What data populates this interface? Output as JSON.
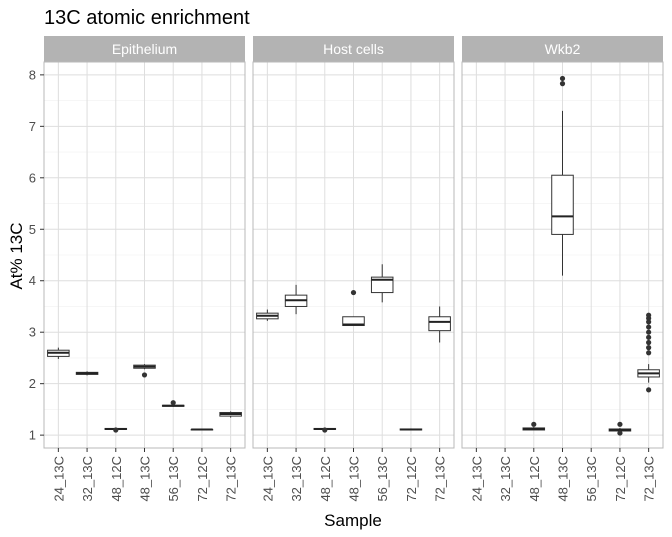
{
  "chart_data": {
    "type": "boxplot",
    "title": "13C atomic enrichment",
    "xlabel": "Sample",
    "ylabel": "At% 13C",
    "ylim": [
      0.75,
      8.25
    ],
    "yticks": [
      1,
      2,
      3,
      4,
      5,
      6,
      7,
      8
    ],
    "grid": true,
    "categories": [
      "24_13C",
      "32_13C",
      "48_12C",
      "48_13C",
      "56_13C",
      "72_12C",
      "72_13C"
    ],
    "panels": [
      {
        "name": "Epithelium",
        "boxes": [
          {
            "category": "24_13C",
            "min": 2.48,
            "q1": 2.53,
            "median": 2.6,
            "q3": 2.65,
            "max": 2.7,
            "outliers": []
          },
          {
            "category": "32_13C",
            "min": 2.16,
            "q1": 2.18,
            "median": 2.2,
            "q3": 2.22,
            "max": 2.24,
            "outliers": []
          },
          {
            "category": "48_12C",
            "min": 1.1,
            "q1": 1.11,
            "median": 1.12,
            "q3": 1.13,
            "max": 1.14,
            "outliers": [
              1.1
            ]
          },
          {
            "category": "48_13C",
            "min": 2.28,
            "q1": 2.3,
            "median": 2.33,
            "q3": 2.36,
            "max": 2.38,
            "outliers": [
              2.17
            ]
          },
          {
            "category": "56_13C",
            "min": 1.55,
            "q1": 1.56,
            "median": 1.57,
            "q3": 1.58,
            "max": 1.59,
            "outliers": [
              1.63
            ]
          },
          {
            "category": "72_12C",
            "min": 1.1,
            "q1": 1.1,
            "median": 1.11,
            "q3": 1.11,
            "max": 1.12,
            "outliers": []
          },
          {
            "category": "72_13C",
            "min": 1.34,
            "q1": 1.37,
            "median": 1.41,
            "q3": 1.44,
            "max": 1.46,
            "outliers": []
          }
        ]
      },
      {
        "name": "Host cells",
        "boxes": [
          {
            "category": "24_13C",
            "min": 3.22,
            "q1": 3.26,
            "median": 3.32,
            "q3": 3.37,
            "max": 3.44,
            "outliers": []
          },
          {
            "category": "32_13C",
            "min": 3.35,
            "q1": 3.5,
            "median": 3.62,
            "q3": 3.72,
            "max": 3.92,
            "outliers": []
          },
          {
            "category": "48_12C",
            "min": 1.1,
            "q1": 1.11,
            "median": 1.12,
            "q3": 1.13,
            "max": 1.14,
            "outliers": [
              1.1
            ]
          },
          {
            "category": "48_13C",
            "min": 3.12,
            "q1": 3.13,
            "median": 3.15,
            "q3": 3.3,
            "max": 3.3,
            "outliers": [
              3.77
            ]
          },
          {
            "category": "56_13C",
            "min": 3.58,
            "q1": 3.77,
            "median": 4.02,
            "q3": 4.07,
            "max": 4.32,
            "outliers": []
          },
          {
            "category": "72_12C",
            "min": 1.09,
            "q1": 1.1,
            "median": 1.11,
            "q3": 1.12,
            "max": 1.13,
            "outliers": []
          },
          {
            "category": "72_13C",
            "min": 2.8,
            "q1": 3.03,
            "median": 3.2,
            "q3": 3.3,
            "max": 3.5,
            "outliers": []
          }
        ]
      },
      {
        "name": "Wkb2",
        "boxes": [
          {
            "category": "48_12C",
            "min": 1.1,
            "q1": 1.1,
            "median": 1.12,
            "q3": 1.14,
            "max": 1.16,
            "outliers": [
              1.21
            ]
          },
          {
            "category": "48_13C",
            "min": 4.1,
            "q1": 4.9,
            "median": 5.25,
            "q3": 6.05,
            "max": 7.3,
            "outliers": [
              7.83,
              7.93
            ]
          },
          {
            "category": "72_12C",
            "min": 1.07,
            "q1": 1.08,
            "median": 1.1,
            "q3": 1.12,
            "max": 1.14,
            "outliers": [
              1.04,
              1.21
            ]
          },
          {
            "category": "72_13C",
            "min": 2.02,
            "q1": 2.13,
            "median": 2.2,
            "q3": 2.27,
            "max": 2.38,
            "outliers": [
              1.88,
              2.6,
              2.7,
              2.8,
              2.9,
              3.0,
              3.1,
              3.2,
              3.27,
              3.33
            ]
          }
        ]
      }
    ]
  }
}
